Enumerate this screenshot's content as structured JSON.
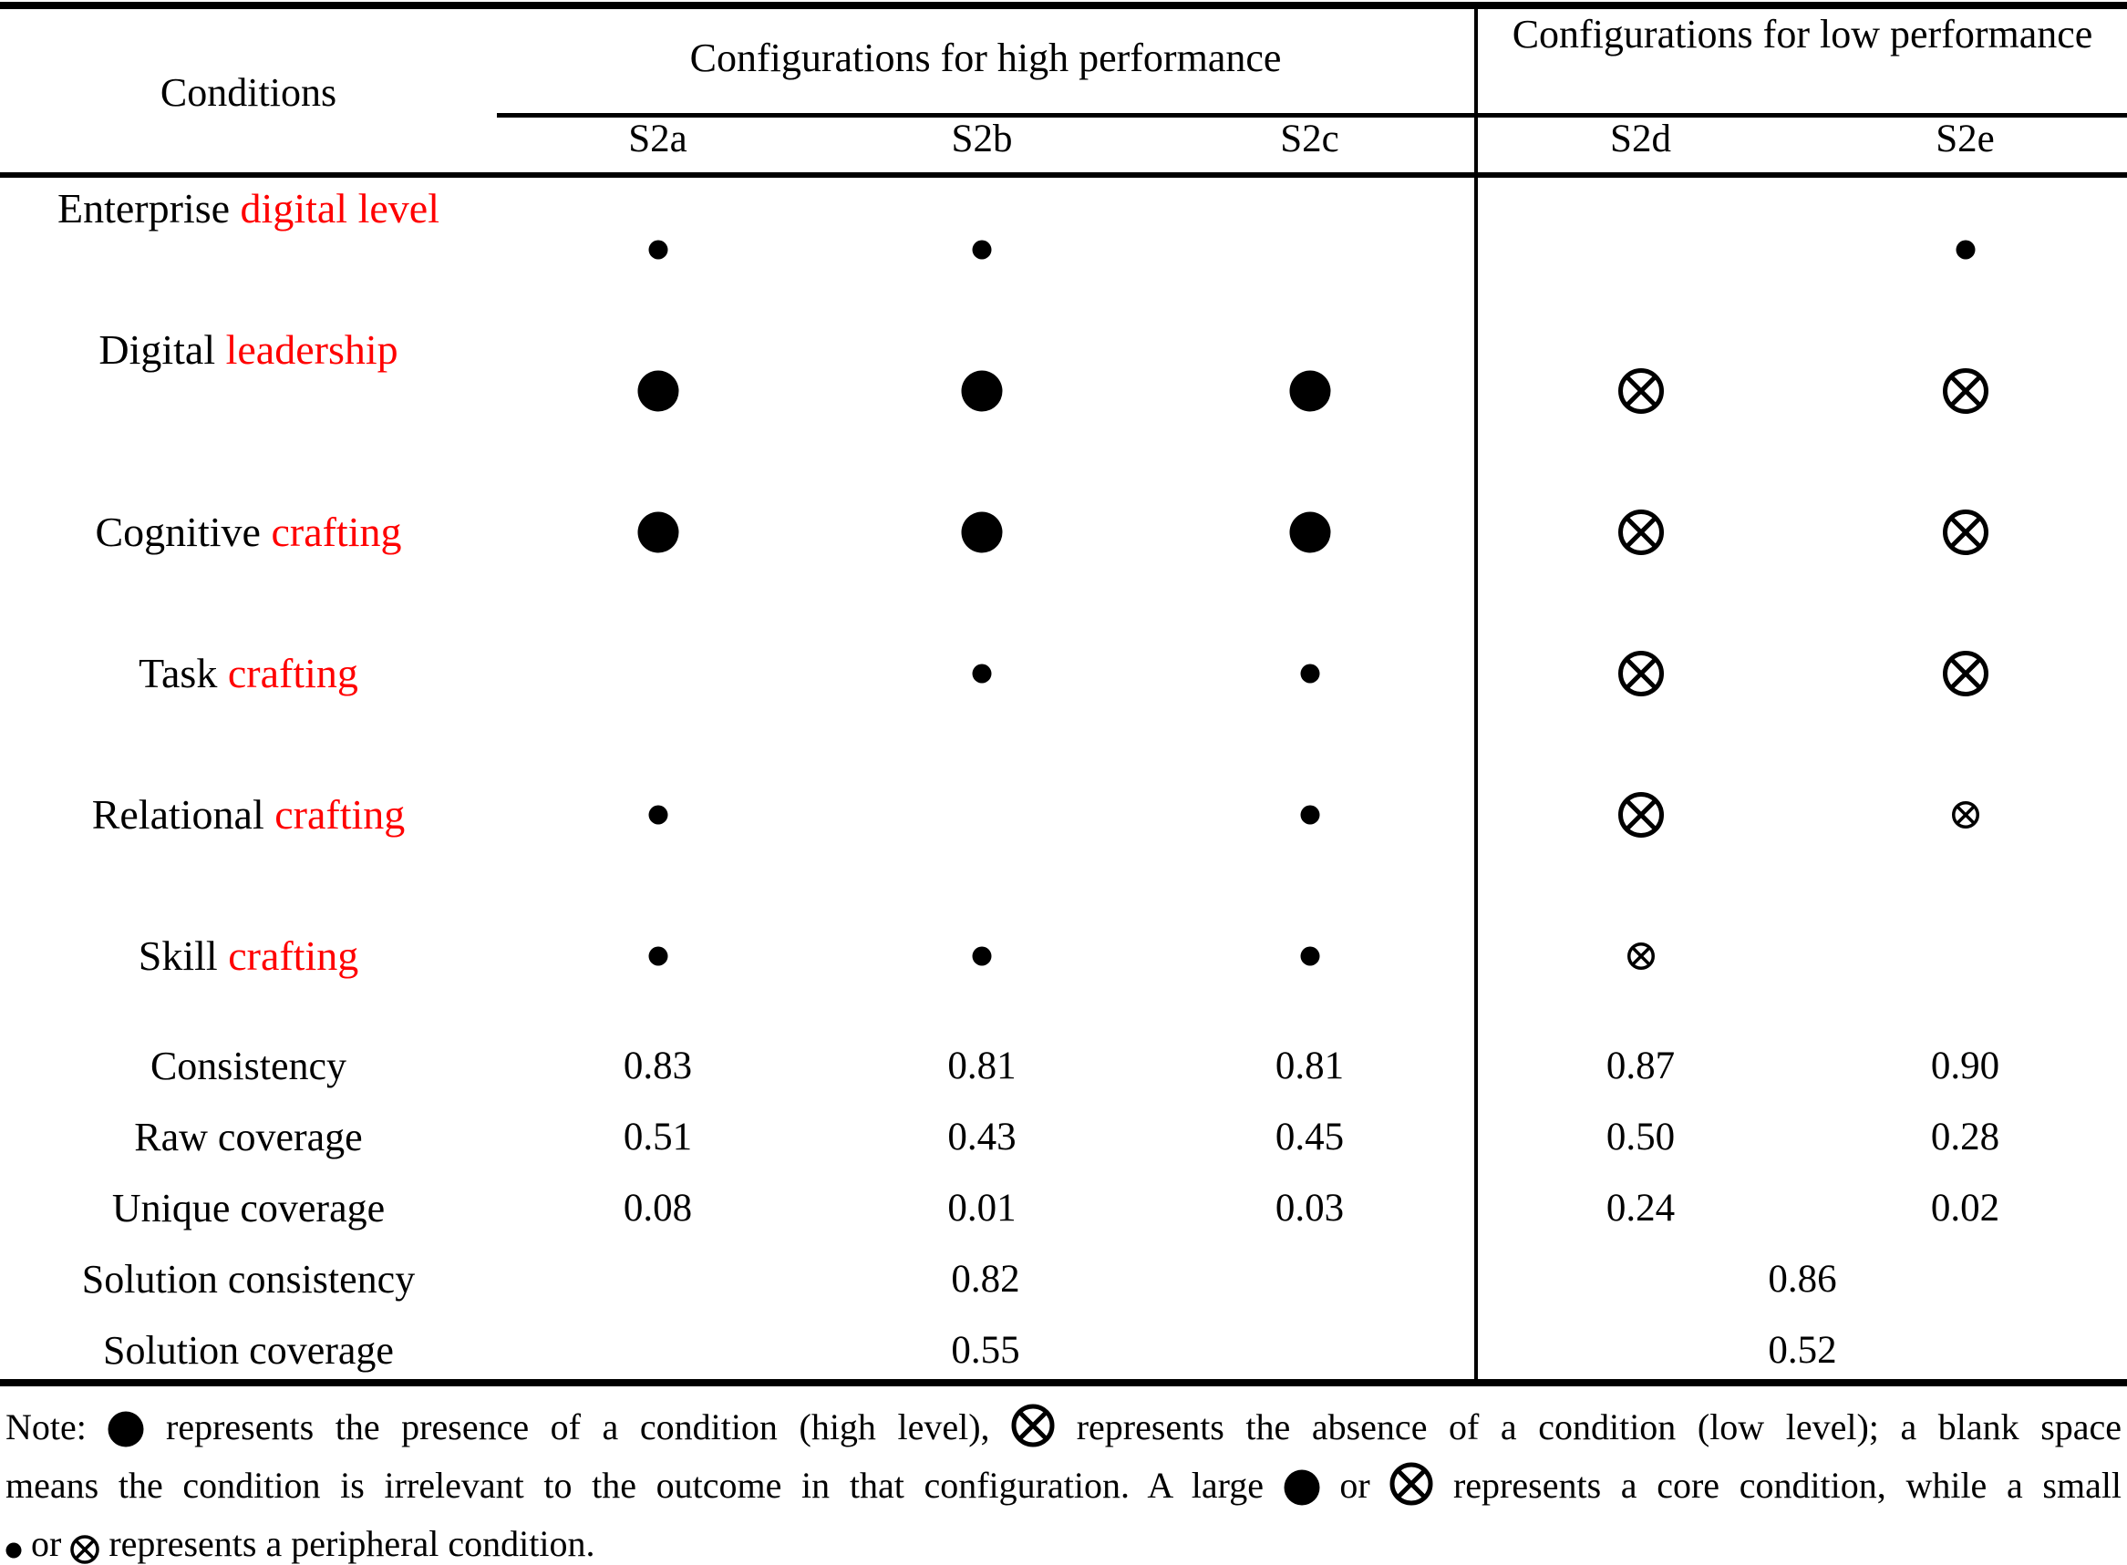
{
  "header": {
    "conditions_label": "Conditions",
    "high_group_label": "Configurations for high performance",
    "low_group_label": "Configurations for low performance",
    "config_columns": [
      "S2a",
      "S2b",
      "S2c",
      "S2d",
      "S2e"
    ]
  },
  "colors": {
    "accent_red": "#ff0000",
    "ink": "#000000"
  },
  "symbol_legend": {
    "core-present": "large filled circle",
    "peripheral-present": "small filled circle",
    "core-absent": "large circled cross",
    "peripheral-absent": "small circled cross",
    "blank": "condition irrelevant"
  },
  "conditions": [
    {
      "label_black": "Enterprise",
      "label_red": "digital level",
      "cells": [
        "peripheral-present",
        "peripheral-present",
        "blank",
        "blank",
        "peripheral-present"
      ]
    },
    {
      "label_black": "Digital",
      "label_red": "leadership",
      "cells": [
        "core-present",
        "core-present",
        "core-present",
        "core-absent",
        "core-absent"
      ]
    },
    {
      "label_black": "Cognitive",
      "label_red": "crafting",
      "cells": [
        "core-present",
        "core-present",
        "core-present",
        "core-absent",
        "core-absent"
      ]
    },
    {
      "label_black": "Task",
      "label_red": "crafting",
      "cells": [
        "blank",
        "peripheral-present",
        "peripheral-present",
        "core-absent",
        "core-absent"
      ]
    },
    {
      "label_black": "Relational",
      "label_red": "crafting",
      "cells": [
        "peripheral-present",
        "blank",
        "peripheral-present",
        "core-absent",
        "peripheral-absent"
      ]
    },
    {
      "label_black": "Skill",
      "label_red": "crafting",
      "cells": [
        "peripheral-present",
        "peripheral-present",
        "peripheral-present",
        "peripheral-absent",
        "blank"
      ]
    }
  ],
  "statistics": [
    {
      "label": "Consistency",
      "values": [
        "0.83",
        "0.81",
        "0.81",
        "0.87",
        "0.90"
      ]
    },
    {
      "label": "Raw coverage",
      "values": [
        "0.51",
        "0.43",
        "0.45",
        "0.50",
        "0.28"
      ]
    },
    {
      "label": "Unique coverage",
      "values": [
        "0.08",
        "0.01",
        "0.03",
        "0.24",
        "0.02"
      ]
    }
  ],
  "solution_rows": [
    {
      "label": "Solution consistency",
      "high": "0.82",
      "low": "0.86"
    },
    {
      "label": "Solution coverage",
      "high": "0.55",
      "low": "0.52"
    }
  ],
  "note": {
    "l1a": "Note:",
    "l1b": "represents the presence of a condition (high level),",
    "l1c": "represents the absence of a condition (low level); a blank space",
    "l2a": "means the condition is irrelevant to the outcome in that configuration. A large",
    "l2b": "or",
    "l2c": "represents a core condition, while a small",
    "l3a": "or",
    "l3b": "represents a peripheral condition."
  }
}
